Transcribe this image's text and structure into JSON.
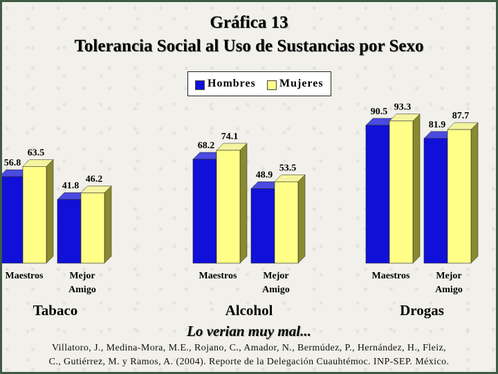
{
  "title": "Gráfica 13",
  "subtitle": "Tolerancia Social al Uso de Sustancias por Sexo",
  "legend": {
    "hombres": "Hombres",
    "mujeres": "Mujeres"
  },
  "caption": "Lo verian muy mal...",
  "citation": {
    "line1": "Villatoro, J., Medina-Mora, M.E., Rojano, C., Amador, N., Bermúdez, P., Hernández, H., Fleiz,",
    "line2": "C., Gutiérrez, M. y Ramos, A. (2004). Reporte de la Delegación Cuauhtémoc. INP-SEP. México."
  },
  "colors": {
    "hombres": "#1010d8",
    "mujeres": "#ffff88",
    "background": "#f1f0ea",
    "frame": "#3c5a44"
  },
  "chart_data": {
    "type": "bar",
    "groups": [
      {
        "name": "Tabaco",
        "categories": [
          {
            "label": [
              "Maestros"
            ],
            "hombres": 56.8,
            "mujeres": 63.5
          },
          {
            "label": [
              "Mejor",
              "Amigo"
            ],
            "hombres": 41.8,
            "mujeres": 46.2
          }
        ]
      },
      {
        "name": "Alcohol",
        "categories": [
          {
            "label": [
              "Maestros"
            ],
            "hombres": 68.2,
            "mujeres": 74.1
          },
          {
            "label": [
              "Mejor",
              "Amigo"
            ],
            "hombres": 48.9,
            "mujeres": 53.5
          }
        ]
      },
      {
        "name": "Drogas",
        "categories": [
          {
            "label": [
              "Maestros"
            ],
            "hombres": 90.5,
            "mujeres": 93.3
          },
          {
            "label": [
              "Mejor",
              "Amigo"
            ],
            "hombres": 81.9,
            "mujeres": 87.7
          }
        ]
      }
    ],
    "series": [
      {
        "key": "hombres",
        "name": "Hombres"
      },
      {
        "key": "mujeres",
        "name": "Mujeres"
      }
    ],
    "ylim": [
      0,
      100
    ],
    "legend_position": "top-center",
    "grid": false
  }
}
